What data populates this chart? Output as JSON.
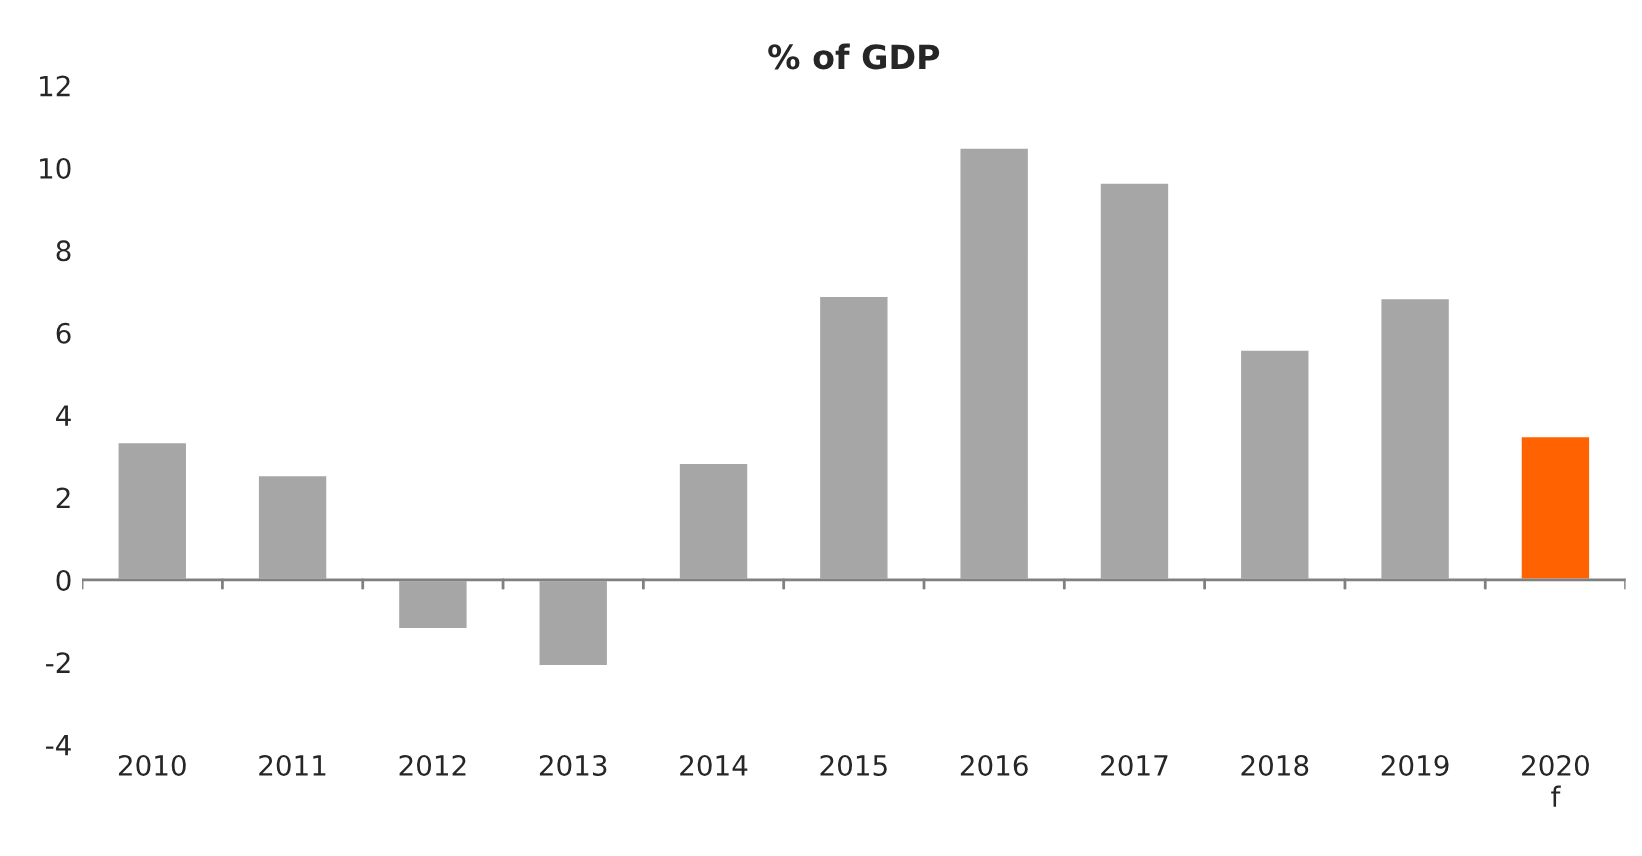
{
  "chart_data": {
    "type": "bar",
    "title": "% of GDP",
    "categories": [
      "2010",
      "2011",
      "2012",
      "2013",
      "2014",
      "2015",
      "2016",
      "2017",
      "2018",
      "2019",
      "2020\nf"
    ],
    "values": [
      3.35,
      2.55,
      -1.2,
      -2.1,
      2.85,
      6.9,
      10.5,
      9.65,
      5.6,
      6.85,
      3.5
    ],
    "colors": [
      "#a6a6a6",
      "#a6a6a6",
      "#a6a6a6",
      "#a6a6a6",
      "#a6a6a6",
      "#a6a6a6",
      "#a6a6a6",
      "#a6a6a6",
      "#a6a6a6",
      "#a6a6a6",
      "#ff6200"
    ],
    "ylim": [
      -4,
      12
    ],
    "yticks": [
      -4,
      -2,
      0,
      2,
      4,
      6,
      8,
      10,
      12
    ]
  }
}
